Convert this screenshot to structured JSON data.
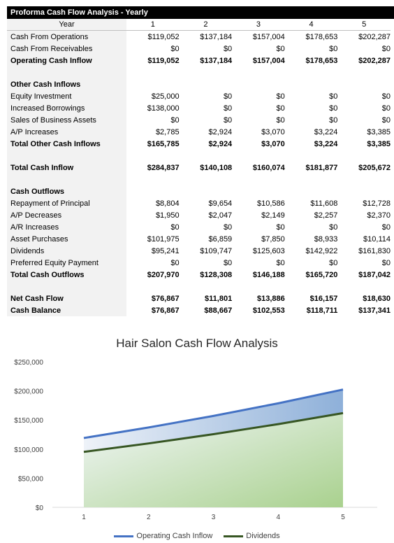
{
  "table": {
    "title": "Proforma Cash Flow Analysis - Yearly",
    "header": {
      "label": "Year",
      "cols": [
        "1",
        "2",
        "3",
        "4",
        "5"
      ]
    },
    "rows": [
      {
        "label": "Cash From Operations",
        "values": [
          "$119,052",
          "$137,184",
          "$157,004",
          "$178,653",
          "$202,287"
        ],
        "bold": false
      },
      {
        "label": "Cash From Receivables",
        "values": [
          "$0",
          "$0",
          "$0",
          "$0",
          "$0"
        ],
        "bold": false
      },
      {
        "label": "Operating Cash Inflow",
        "values": [
          "$119,052",
          "$137,184",
          "$157,004",
          "$178,653",
          "$202,287"
        ],
        "bold": true
      },
      {
        "label": "",
        "values": [
          "",
          "",
          "",
          "",
          ""
        ],
        "bold": false
      },
      {
        "label": "Other Cash Inflows",
        "values": [
          "",
          "",
          "",
          "",
          ""
        ],
        "bold": true
      },
      {
        "label": "Equity Investment",
        "values": [
          "$25,000",
          "$0",
          "$0",
          "$0",
          "$0"
        ],
        "bold": false
      },
      {
        "label": "Increased Borrowings",
        "values": [
          "$138,000",
          "$0",
          "$0",
          "$0",
          "$0"
        ],
        "bold": false
      },
      {
        "label": "Sales of Business Assets",
        "values": [
          "$0",
          "$0",
          "$0",
          "$0",
          "$0"
        ],
        "bold": false
      },
      {
        "label": "A/P Increases",
        "values": [
          "$2,785",
          "$2,924",
          "$3,070",
          "$3,224",
          "$3,385"
        ],
        "bold": false
      },
      {
        "label": "Total Other Cash Inflows",
        "values": [
          "$165,785",
          "$2,924",
          "$3,070",
          "$3,224",
          "$3,385"
        ],
        "bold": true
      },
      {
        "label": "",
        "values": [
          "",
          "",
          "",
          "",
          ""
        ],
        "bold": false
      },
      {
        "label": "Total Cash Inflow",
        "values": [
          "$284,837",
          "$140,108",
          "$160,074",
          "$181,877",
          "$205,672"
        ],
        "bold": true
      },
      {
        "label": "",
        "values": [
          "",
          "",
          "",
          "",
          ""
        ],
        "bold": false
      },
      {
        "label": "Cash Outflows",
        "values": [
          "",
          "",
          "",
          "",
          ""
        ],
        "bold": true
      },
      {
        "label": "Repayment of Principal",
        "values": [
          "$8,804",
          "$9,654",
          "$10,586",
          "$11,608",
          "$12,728"
        ],
        "bold": false
      },
      {
        "label": "A/P Decreases",
        "values": [
          "$1,950",
          "$2,047",
          "$2,149",
          "$2,257",
          "$2,370"
        ],
        "bold": false
      },
      {
        "label": "A/R Increases",
        "values": [
          "$0",
          "$0",
          "$0",
          "$0",
          "$0"
        ],
        "bold": false
      },
      {
        "label": "Asset Purchases",
        "values": [
          "$101,975",
          "$6,859",
          "$7,850",
          "$8,933",
          "$10,114"
        ],
        "bold": false
      },
      {
        "label": "Dividends",
        "values": [
          "$95,241",
          "$109,747",
          "$125,603",
          "$142,922",
          "$161,830"
        ],
        "bold": false
      },
      {
        "label": "Preferred Equity Payment",
        "values": [
          "$0",
          "$0",
          "$0",
          "$0",
          "$0"
        ],
        "bold": false
      },
      {
        "label": "Total Cash Outflows",
        "values": [
          "$207,970",
          "$128,308",
          "$146,188",
          "$165,720",
          "$187,042"
        ],
        "bold": true
      },
      {
        "label": "",
        "values": [
          "",
          "",
          "",
          "",
          ""
        ],
        "bold": false
      },
      {
        "label": "Net Cash Flow",
        "values": [
          "$76,867",
          "$11,801",
          "$13,886",
          "$16,157",
          "$18,630"
        ],
        "bold": true
      },
      {
        "label": "Cash Balance",
        "values": [
          "$76,867",
          "$88,667",
          "$102,553",
          "$118,711",
          "$137,341"
        ],
        "bold": true
      }
    ]
  },
  "chart_data": {
    "type": "area",
    "title": "Hair Salon Cash Flow Analysis",
    "x": [
      1,
      2,
      3,
      4,
      5
    ],
    "series": [
      {
        "name": "Operating Cash Inflow",
        "values": [
          119052,
          137184,
          157004,
          178653,
          202287
        ],
        "color": "#4472c4"
      },
      {
        "name": "Dividends",
        "values": [
          95241,
          109747,
          125603,
          142922,
          161830
        ],
        "color": "#375623"
      }
    ],
    "ylim": [
      0,
      250000
    ],
    "yticks": [
      "$0",
      "$50,000",
      "$100,000",
      "$150,000",
      "$200,000",
      "$250,000"
    ],
    "xticks": [
      "1",
      "2",
      "3",
      "4",
      "5"
    ],
    "grid": false,
    "legend": "bottom"
  }
}
